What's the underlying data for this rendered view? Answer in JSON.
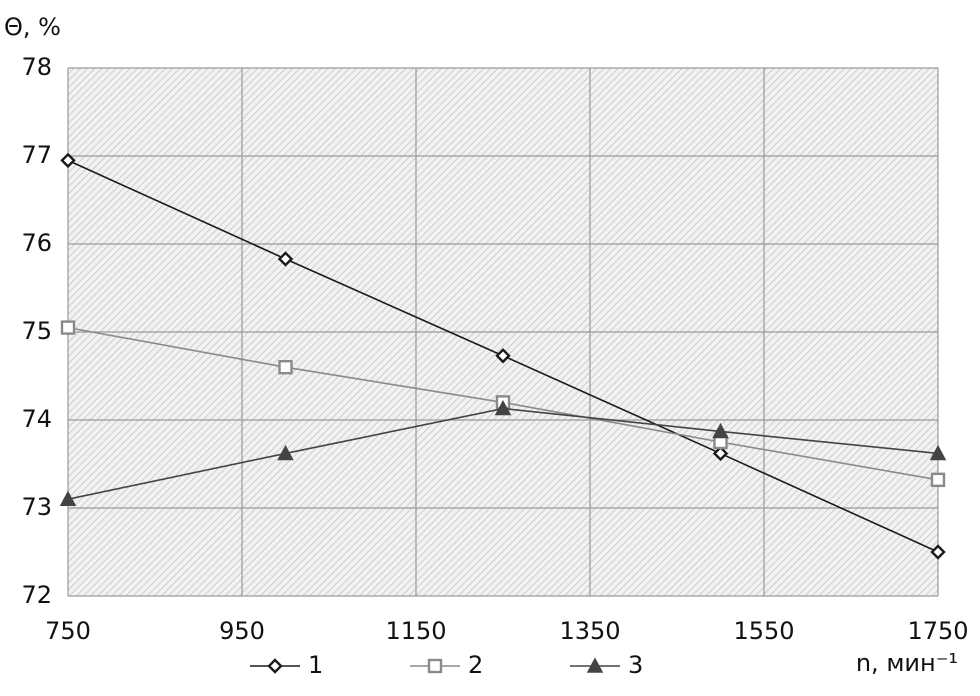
{
  "chart_data": {
    "type": "line",
    "y_label": "Θ, %",
    "x_label": "n, мин⁻¹",
    "x": [
      750,
      1000,
      1250,
      1500,
      1750
    ],
    "xlim": [
      750,
      1750
    ],
    "xticks": [
      750,
      950,
      1150,
      1350,
      1550,
      1750
    ],
    "ylim": [
      72,
      78
    ],
    "yticks": [
      72,
      73,
      74,
      75,
      76,
      77,
      78
    ],
    "grid": true,
    "legend": "bottom",
    "series": [
      {
        "name": "1",
        "color": "#1a1a1a",
        "marker": "diamond",
        "values": [
          76.95,
          75.83,
          74.73,
          73.62,
          72.5
        ]
      },
      {
        "name": "2",
        "color": "#8a8a8a",
        "marker": "square",
        "values": [
          75.05,
          74.6,
          74.2,
          73.75,
          73.32
        ]
      },
      {
        "name": "3",
        "color": "#444444",
        "marker": "triangle",
        "values": [
          73.1,
          73.62,
          74.13,
          73.87,
          73.62
        ]
      }
    ]
  }
}
